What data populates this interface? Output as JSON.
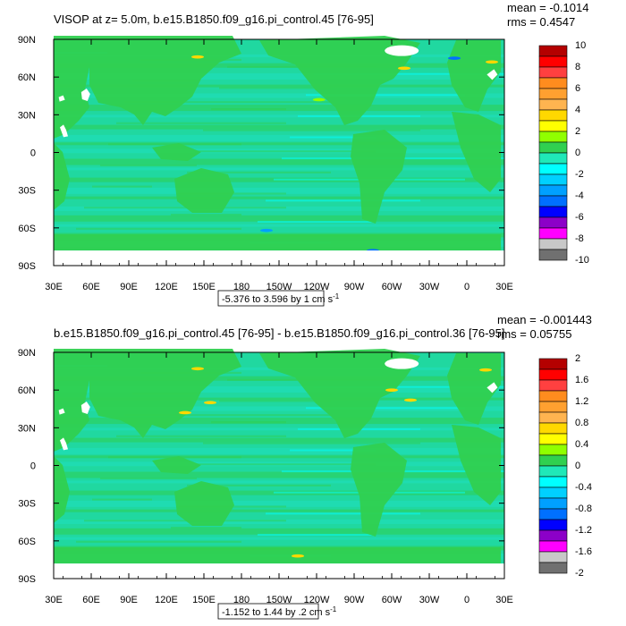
{
  "colors": {
    "ocean_base": "#20d8a0",
    "land": "#30d050",
    "land_mask": "#ffffff",
    "frame": "#000000"
  },
  "chart_data": [
    {
      "type": "heatmap",
      "title": "VISOP at z=   5.0m, b.e15.B1850.f09_g16.pi_control.45 [76-95]",
      "stats": {
        "mean": "mean = -0.1014",
        "rms": "rms = 0.4547"
      },
      "range_note": "-5.376 to 3.596 by 1 cm s",
      "range_sup": "-1",
      "xticks": [
        "30E",
        "60E",
        "90E",
        "120E",
        "150E",
        "180",
        "150W",
        "120W",
        "90W",
        "60W",
        "30W",
        "0",
        "30E"
      ],
      "yticks": [
        "90N",
        "60N",
        "30N",
        "0",
        "30S",
        "60S",
        "90S"
      ],
      "colorbar": {
        "labels": [
          "10",
          "8",
          "6",
          "4",
          "2",
          "0",
          "-2",
          "-4",
          "-6",
          "-8",
          "-10"
        ],
        "colors": [
          "#b40000",
          "#ff0000",
          "#ff4040",
          "#ff8c1e",
          "#ffa030",
          "#ffb450",
          "#ffd800",
          "#ffff00",
          "#90ff00",
          "#30d050",
          "#20e8b8",
          "#00ffff",
          "#00d0ff",
          "#00a0ff",
          "#0070ff",
          "#0000ff",
          "#8c00c8",
          "#ff00ff",
          "#c8c8c8",
          "#707070"
        ]
      },
      "spots": [
        {
          "lon": 115,
          "lat": 76,
          "color": "#ffd800"
        },
        {
          "lon": 212,
          "lat": 42,
          "color": "#90ff00"
        },
        {
          "lon": 280,
          "lat": 67,
          "color": "#ffd800"
        },
        {
          "lon": 350,
          "lat": 72,
          "color": "#ffd800"
        },
        {
          "lon": 170,
          "lat": -62,
          "color": "#00a0ff"
        },
        {
          "lon": 255,
          "lat": -78,
          "color": "#0070ff"
        },
        {
          "lon": 320,
          "lat": 75,
          "color": "#0070ff"
        }
      ]
    },
    {
      "type": "heatmap",
      "title": "b.e15.B1850.f09_g16.pi_control.45 [76-95] - b.e15.B1850.f09_g16.pi_control.36 [76-95]",
      "stats": {
        "mean": "mean = -0.001443",
        "rms": "rms = 0.05755"
      },
      "range_note": "-1.152 to 1.44 by .2 cm s",
      "range_sup": "-1",
      "xticks": [
        "30E",
        "60E",
        "90E",
        "120E",
        "150E",
        "180",
        "150W",
        "120W",
        "90W",
        "60W",
        "30W",
        "0",
        "30E"
      ],
      "yticks": [
        "90N",
        "60N",
        "30N",
        "0",
        "30S",
        "60S",
        "90S"
      ],
      "colorbar": {
        "labels": [
          "2",
          "1.6",
          "1.2",
          "0.8",
          "0.4",
          "0",
          "-0.4",
          "-0.8",
          "-1.2",
          "-1.6",
          "-2"
        ],
        "colors": [
          "#b40000",
          "#ff0000",
          "#ff4040",
          "#ff8c1e",
          "#ffa030",
          "#ffb450",
          "#ffd800",
          "#ffff00",
          "#90ff00",
          "#30d050",
          "#20e8b8",
          "#00ffff",
          "#00d0ff",
          "#00a0ff",
          "#0070ff",
          "#0000ff",
          "#8c00c8",
          "#ff00ff",
          "#c8c8c8",
          "#707070"
        ]
      },
      "spots": [
        {
          "lon": 115,
          "lat": 77,
          "color": "#ffd800"
        },
        {
          "lon": 105,
          "lat": 42,
          "color": "#ffd800"
        },
        {
          "lon": 270,
          "lat": 60,
          "color": "#ffd800"
        },
        {
          "lon": 285,
          "lat": 52,
          "color": "#ffd800"
        },
        {
          "lon": 345,
          "lat": 76,
          "color": "#ffd800"
        },
        {
          "lon": 125,
          "lat": 50,
          "color": "#ffd800"
        },
        {
          "lon": 195,
          "lat": -72,
          "color": "#ffd800"
        },
        {
          "lon": 300,
          "lat": -82,
          "color": "#ff8c1e"
        }
      ]
    }
  ]
}
